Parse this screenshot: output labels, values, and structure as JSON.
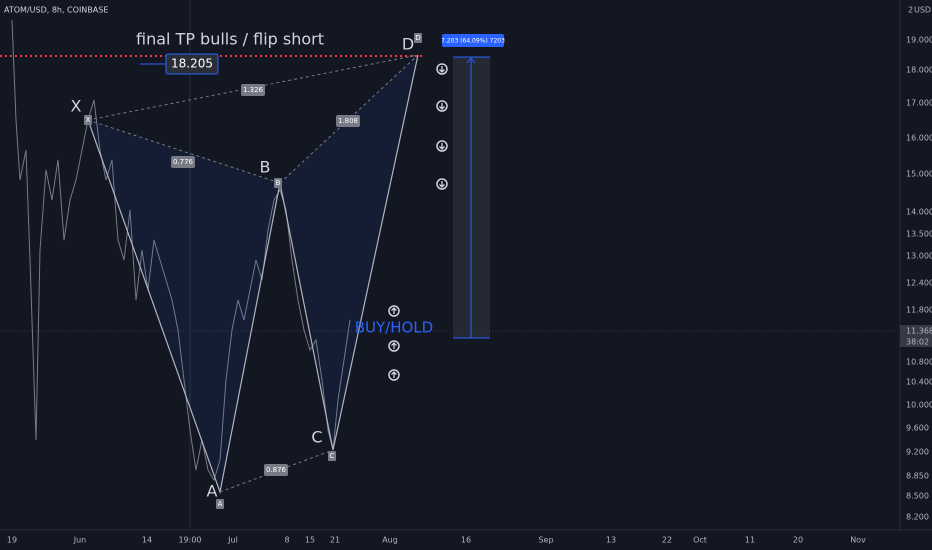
{
  "header": {
    "symbol": "ATOM/USD, 8h, COINBASE"
  },
  "price_axis": {
    "top": "2",
    "currency": "USD",
    "labels": [
      "19.000",
      "18.000",
      "17.000",
      "16.000",
      "15.000",
      "14.000",
      "13.500",
      "13.000",
      "12.400",
      "11.800",
      "10.800",
      "10.400",
      "10.000",
      "9.600",
      "9.200",
      "8.850",
      "8.500",
      "8.200"
    ],
    "current_price": "11.368",
    "countdown": "38:02"
  },
  "time_axis": {
    "labels": [
      "19",
      "Jun",
      "14",
      "19:00",
      "Jul",
      "8",
      "15",
      "21",
      "Aug",
      "16",
      "Sep",
      "13",
      "22",
      "Oct",
      "11",
      "20",
      "Nov"
    ]
  },
  "pattern": {
    "points": [
      "X",
      "A",
      "B",
      "C",
      "D"
    ],
    "ratios": [
      "1.326",
      "0.776",
      "1.808",
      "0.876"
    ]
  },
  "annotations": {
    "target_note": "final TP bulls / flip short",
    "target_price": "18.205",
    "signal": "BUY/HOLD",
    "measure": "7.203 (64.09%) 7203"
  }
}
